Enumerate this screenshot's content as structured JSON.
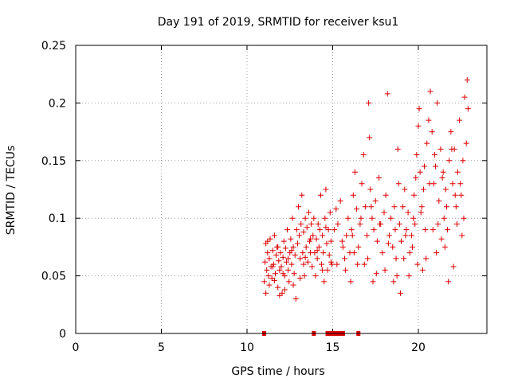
{
  "chart_data": {
    "type": "scatter",
    "title": "Day 191 of 2019, SRMTID for receiver ksu1",
    "xlabel": "GPS time / hours",
    "ylabel": "SRMTID / TECUs",
    "xlim": [
      0,
      24
    ],
    "ylim": [
      0,
      0.25
    ],
    "xticks": [
      0,
      5,
      10,
      15,
      20
    ],
    "yticks": [
      0,
      0.05,
      0.1,
      0.15,
      0.2,
      0.25
    ],
    "ytick_labels": [
      "0",
      "0.05",
      "0.1",
      "0.15",
      "0.2",
      "0.25"
    ],
    "grid": true,
    "marker": "+",
    "color": "#dd0000",
    "zero_marks": [
      11.0,
      13.9,
      14.7,
      14.8,
      15.0,
      15.2,
      15.4,
      15.6,
      16.5
    ],
    "series": [
      {
        "name": "SRMTID",
        "points": [
          [
            11.0,
            0.045
          ],
          [
            11.05,
            0.062
          ],
          [
            11.1,
            0.078
          ],
          [
            11.15,
            0.055
          ],
          [
            11.2,
            0.07
          ],
          [
            11.25,
            0.05
          ],
          [
            11.3,
            0.065
          ],
          [
            11.35,
            0.082
          ],
          [
            11.4,
            0.058
          ],
          [
            11.45,
            0.048
          ],
          [
            11.5,
            0.072
          ],
          [
            11.55,
            0.06
          ],
          [
            11.6,
            0.085
          ],
          [
            11.65,
            0.052
          ],
          [
            11.7,
            0.068
          ],
          [
            11.75,
            0.075
          ],
          [
            11.8,
            0.04
          ],
          [
            11.85,
            0.063
          ],
          [
            11.9,
            0.055
          ],
          [
            11.95,
            0.07
          ],
          [
            12.0,
            0.058
          ],
          [
            12.05,
            0.035
          ],
          [
            12.1,
            0.066
          ],
          [
            12.15,
            0.08
          ],
          [
            12.2,
            0.05
          ],
          [
            12.25,
            0.074
          ],
          [
            12.3,
            0.062
          ],
          [
            12.35,
            0.09
          ],
          [
            12.4,
            0.055
          ],
          [
            12.45,
            0.045
          ],
          [
            12.5,
            0.07
          ],
          [
            12.55,
            0.082
          ],
          [
            12.6,
            0.06
          ],
          [
            12.65,
            0.1
          ],
          [
            12.7,
            0.075
          ],
          [
            12.75,
            0.052
          ],
          [
            12.8,
            0.068
          ],
          [
            12.85,
            0.03
          ],
          [
            12.9,
            0.09
          ],
          [
            12.95,
            0.078
          ],
          [
            13.0,
            0.11
          ],
          [
            13.05,
            0.085
          ],
          [
            13.1,
            0.065
          ],
          [
            13.15,
            0.095
          ],
          [
            13.2,
            0.12
          ],
          [
            13.25,
            0.07
          ],
          [
            13.3,
            0.088
          ],
          [
            13.35,
            0.05
          ],
          [
            13.4,
            0.1
          ],
          [
            13.45,
            0.075
          ],
          [
            13.5,
            0.092
          ],
          [
            13.55,
            0.062
          ],
          [
            13.6,
            0.105
          ],
          [
            13.65,
            0.08
          ],
          [
            13.7,
            0.07
          ],
          [
            13.75,
            0.095
          ],
          [
            13.8,
            0.058
          ],
          [
            13.85,
            0.085
          ],
          [
            13.9,
            0.1
          ],
          [
            13.95,
            0.07
          ],
          [
            14.0,
            0.05
          ],
          [
            14.05,
            0.082
          ],
          [
            14.1,
            0.065
          ],
          [
            14.15,
            0.095
          ],
          [
            14.2,
            0.075
          ],
          [
            14.25,
            0.09
          ],
          [
            14.3,
            0.12
          ],
          [
            14.35,
            0.06
          ],
          [
            14.4,
            0.085
          ],
          [
            14.45,
            0.07
          ],
          [
            14.5,
            0.045
          ],
          [
            14.55,
            0.1
          ],
          [
            14.6,
            0.125
          ],
          [
            14.65,
            0.078
          ],
          [
            14.7,
            0.055
          ],
          [
            14.75,
            0.09
          ],
          [
            14.8,
            0.068
          ],
          [
            14.85,
            0.105
          ],
          [
            14.9,
            0.08
          ],
          [
            14.95,
            0.06
          ],
          [
            11.1,
            0.035
          ],
          [
            11.3,
            0.042
          ],
          [
            11.6,
            0.046
          ],
          [
            11.9,
            0.033
          ],
          [
            12.2,
            0.038
          ],
          [
            12.4,
            0.065
          ],
          [
            12.7,
            0.042
          ],
          [
            13.1,
            0.048
          ],
          [
            13.3,
            0.06
          ],
          [
            13.7,
            0.082
          ],
          [
            14.1,
            0.072
          ],
          [
            14.4,
            0.055
          ],
          [
            14.6,
            0.092
          ],
          [
            14.9,
            0.062
          ],
          [
            11.2,
            0.08
          ],
          [
            11.5,
            0.058
          ],
          [
            11.8,
            0.075
          ],
          [
            12.1,
            0.052
          ],
          [
            12.6,
            0.072
          ],
          [
            13.4,
            0.066
          ],
          [
            15.1,
            0.09
          ],
          [
            15.2,
            0.108
          ],
          [
            15.3,
            0.095
          ],
          [
            15.45,
            0.115
          ],
          [
            15.6,
            0.075
          ],
          [
            15.7,
            0.065
          ],
          [
            15.8,
            0.085
          ],
          [
            15.9,
            0.1
          ],
          [
            16.0,
            0.07
          ],
          [
            16.1,
            0.09
          ],
          [
            16.2,
            0.12
          ],
          [
            16.3,
            0.14
          ],
          [
            16.4,
            0.108
          ],
          [
            16.5,
            0.075
          ],
          [
            16.6,
            0.095
          ],
          [
            16.7,
            0.13
          ],
          [
            16.8,
            0.155
          ],
          [
            16.9,
            0.11
          ],
          [
            17.0,
            0.085
          ],
          [
            17.1,
            0.2
          ],
          [
            17.15,
            0.17
          ],
          [
            17.2,
            0.125
          ],
          [
            17.3,
            0.1
          ],
          [
            17.4,
            0.09
          ],
          [
            17.5,
            0.115
          ],
          [
            17.6,
            0.08
          ],
          [
            17.7,
            0.135
          ],
          [
            17.8,
            0.095
          ],
          [
            17.9,
            0.07
          ],
          [
            18.0,
            0.105
          ],
          [
            18.1,
            0.12
          ],
          [
            18.2,
            0.208
          ],
          [
            18.3,
            0.085
          ],
          [
            18.4,
            0.1
          ],
          [
            18.5,
            0.075
          ],
          [
            18.6,
            0.11
          ],
          [
            18.7,
            0.065
          ],
          [
            18.8,
            0.16
          ],
          [
            18.85,
            0.13
          ],
          [
            18.9,
            0.095
          ],
          [
            19.0,
            0.08
          ],
          [
            19.1,
            0.11
          ],
          [
            19.2,
            0.125
          ],
          [
            19.3,
            0.09
          ],
          [
            19.4,
            0.105
          ],
          [
            19.5,
            0.07
          ],
          [
            19.6,
            0.085
          ],
          [
            19.7,
            0.1
          ],
          [
            19.8,
            0.095
          ],
          [
            19.9,
            0.155
          ],
          [
            20.0,
            0.18
          ],
          [
            20.05,
            0.195
          ],
          [
            20.1,
            0.14
          ],
          [
            20.2,
            0.11
          ],
          [
            20.3,
            0.125
          ],
          [
            20.4,
            0.09
          ],
          [
            20.5,
            0.165
          ],
          [
            20.6,
            0.185
          ],
          [
            20.7,
            0.21
          ],
          [
            20.8,
            0.175
          ],
          [
            20.9,
            0.13
          ],
          [
            21.0,
            0.145
          ],
          [
            21.1,
            0.2
          ],
          [
            21.2,
            0.115
          ],
          [
            21.3,
            0.16
          ],
          [
            21.4,
            0.135
          ],
          [
            21.5,
            0.1
          ],
          [
            21.6,
            0.125
          ],
          [
            21.7,
            0.09
          ],
          [
            21.8,
            0.15
          ],
          [
            21.9,
            0.175
          ],
          [
            22.0,
            0.13
          ],
          [
            22.1,
            0.16
          ],
          [
            22.2,
            0.11
          ],
          [
            22.3,
            0.14
          ],
          [
            22.4,
            0.185
          ],
          [
            22.5,
            0.12
          ],
          [
            22.6,
            0.15
          ],
          [
            22.7,
            0.205
          ],
          [
            22.8,
            0.165
          ],
          [
            22.85,
            0.22
          ],
          [
            22.9,
            0.195
          ],
          [
            15.25,
            0.06
          ],
          [
            15.55,
            0.08
          ],
          [
            16.05,
            0.045
          ],
          [
            16.45,
            0.06
          ],
          [
            17.05,
            0.065
          ],
          [
            17.55,
            0.052
          ],
          [
            18.05,
            0.055
          ],
          [
            18.55,
            0.045
          ],
          [
            18.95,
            0.035
          ],
          [
            19.45,
            0.05
          ],
          [
            19.95,
            0.06
          ],
          [
            20.45,
            0.065
          ],
          [
            21.05,
            0.07
          ],
          [
            21.55,
            0.075
          ],
          [
            22.05,
            0.058
          ],
          [
            22.55,
            0.085
          ],
          [
            21.75,
            0.045
          ],
          [
            20.25,
            0.055
          ],
          [
            18.75,
            0.05
          ],
          [
            17.35,
            0.045
          ],
          [
            16.85,
            0.06
          ],
          [
            16.25,
            0.07
          ],
          [
            15.75,
            0.055
          ],
          [
            19.15,
            0.065
          ],
          [
            19.65,
            0.075
          ],
          [
            20.85,
            0.09
          ],
          [
            21.35,
            0.082
          ],
          [
            22.25,
            0.095
          ],
          [
            16.15,
            0.085
          ],
          [
            16.65,
            0.1
          ],
          [
            17.25,
            0.11
          ],
          [
            17.75,
            0.095
          ],
          [
            18.25,
            0.078
          ],
          [
            18.65,
            0.09
          ],
          [
            19.25,
            0.085
          ],
          [
            19.75,
            0.12
          ],
          [
            20.15,
            0.105
          ],
          [
            20.65,
            0.13
          ],
          [
            21.15,
            0.095
          ],
          [
            21.65,
            0.11
          ],
          [
            22.15,
            0.12
          ],
          [
            22.65,
            0.1
          ],
          [
            20.95,
            0.155
          ],
          [
            21.45,
            0.14
          ],
          [
            21.95,
            0.16
          ],
          [
            22.45,
            0.13
          ],
          [
            20.35,
            0.145
          ],
          [
            19.85,
            0.135
          ]
        ]
      }
    ]
  }
}
